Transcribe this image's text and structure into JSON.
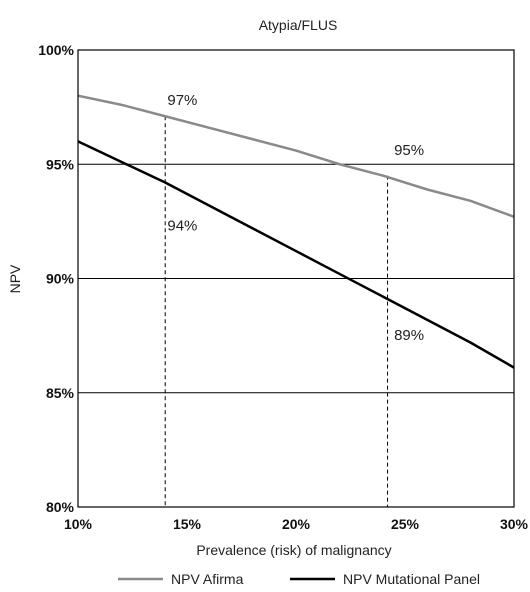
{
  "chart_data": {
    "type": "line",
    "title": "Atypia/FLUS",
    "xlabel": "Prevalence (risk) of malignancy",
    "ylabel": "NPV",
    "xlim": [
      10,
      30
    ],
    "ylim": [
      80,
      100
    ],
    "x_ticks": [
      10,
      15,
      20,
      25,
      30
    ],
    "y_ticks": [
      80,
      85,
      90,
      95,
      100
    ],
    "x_tick_labels": [
      "10%",
      "15%",
      "20%",
      "25%",
      "30%"
    ],
    "y_tick_labels": [
      "80%",
      "85%",
      "90%",
      "95%",
      "100%"
    ],
    "grid": "horizontal",
    "legend_position": "bottom",
    "series": [
      {
        "name": "NPV Afirma",
        "color": "#8a8a8a",
        "x": [
          10,
          12,
          14,
          16,
          18,
          20,
          22,
          24,
          26,
          28,
          30
        ],
        "y": [
          98.0,
          97.6,
          97.1,
          96.6,
          96.1,
          95.6,
          95.0,
          94.5,
          93.9,
          93.4,
          92.7
        ]
      },
      {
        "name": "NPV Mutational Panel",
        "color": "#000000",
        "x": [
          10,
          12,
          14,
          16,
          18,
          20,
          22,
          24,
          26,
          28,
          30
        ],
        "y": [
          96.0,
          95.1,
          94.2,
          93.2,
          92.2,
          91.2,
          90.2,
          89.2,
          88.2,
          87.2,
          86.1
        ]
      }
    ],
    "reference_lines": [
      {
        "x": 14,
        "y_top": 97.1
      },
      {
        "x": 24.2,
        "y_top": 94.5
      }
    ],
    "annotations": [
      {
        "text": "97%",
        "x": 14.1,
        "y": 97.6
      },
      {
        "text": "95%",
        "x": 24.5,
        "y": 95.4
      },
      {
        "text": "94%",
        "x": 14.1,
        "y": 92.1
      },
      {
        "text": "89%",
        "x": 24.5,
        "y": 87.3
      }
    ]
  }
}
